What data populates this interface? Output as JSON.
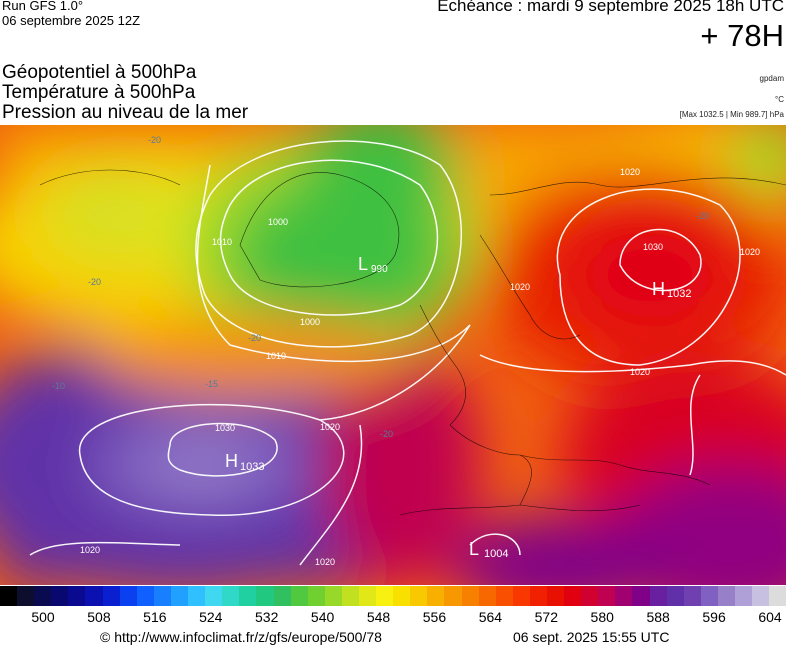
{
  "header": {
    "run_model": "Run GFS 1.0°",
    "run_date": "06 septembre 2025 12Z",
    "echeance": "Échéance : mardi 9 septembre 2025 18h UTC",
    "horizon": "+ 78H"
  },
  "parameters": [
    "Géopotentiel à 500hPa",
    "Température à 500hPa",
    "Pression au niveau de la mer"
  ],
  "units": {
    "geopotential": "gpdam",
    "temperature": "°C",
    "pressure_range": "[Max 1032.5 | Min 989.7] hPa"
  },
  "map": {
    "pressure_centers": [
      {
        "type": "L",
        "value": "990"
      },
      {
        "type": "H",
        "value": "1032"
      },
      {
        "type": "H",
        "value": "1033"
      },
      {
        "type": "L",
        "value": "1004"
      }
    ],
    "isobar_labels": [
      "1000",
      "1000",
      "1010",
      "1010",
      "1020",
      "1020",
      "1020",
      "1020",
      "1020",
      "1020",
      "1020",
      "1030",
      "1030"
    ],
    "temperature_labels": [
      "-20",
      "-20",
      "-20",
      "-20",
      "-15",
      "-10",
      "-20"
    ]
  },
  "colorbar": {
    "ticks": [
      "500",
      "508",
      "516",
      "524",
      "532",
      "540",
      "548",
      "556",
      "564",
      "572",
      "580",
      "588",
      "596",
      "604"
    ],
    "colors": [
      "#000000",
      "#0d0d2e",
      "#0a0a50",
      "#080870",
      "#0a0a90",
      "#0b10b0",
      "#0a20d0",
      "#0a40f0",
      "#1060ff",
      "#1880ff",
      "#20a0ff",
      "#30c0ff",
      "#40d8f0",
      "#30d8c8",
      "#20d0a0",
      "#20c880",
      "#30c060",
      "#50c840",
      "#70d030",
      "#98d828",
      "#c0e020",
      "#e0e818",
      "#f8f010",
      "#f8e000",
      "#f8c800",
      "#f8b000",
      "#f89800",
      "#f88000",
      "#f86800",
      "#f85000",
      "#f83800",
      "#f02000",
      "#e81000",
      "#e00010",
      "#d00030",
      "#c00050",
      "#a00070",
      "#800088",
      "#6820a0",
      "#6030a8",
      "#7040b0",
      "#8060c0",
      "#9880c8",
      "#b0a0d8",
      "#c8c0e0",
      "#dcdcdc"
    ]
  },
  "footer": {
    "credit": "© http://www.infoclimat.fr/z/gfs/europe/500/78",
    "map_time": "06 sept. 2025 15:55 UTC"
  }
}
